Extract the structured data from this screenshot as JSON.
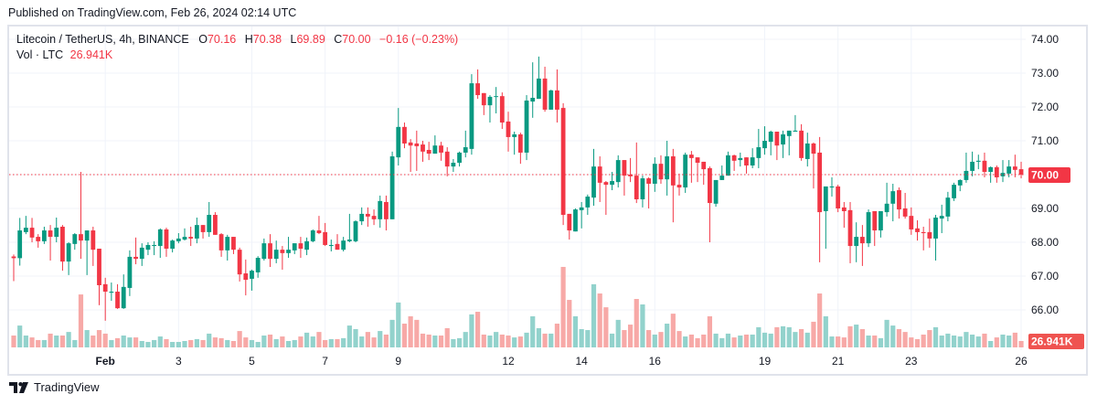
{
  "published": "Published on TradingView.com, Feb 26, 2024 02:14 UTC",
  "legend": {
    "symbol": "Litecoin / TetherUS, 4h, BINANCE",
    "open_label": "O",
    "open": "70.16",
    "high_label": "H",
    "high": "70.38",
    "low_label": "L",
    "low": "69.89",
    "close_label": "C",
    "close": "70.00",
    "change": "−0.16 (−0.23%)",
    "vol_label": "Vol · LTC",
    "vol_value": "26.941K"
  },
  "brand": "TradingView",
  "colors": {
    "up": "#089981",
    "down": "#f23645",
    "vol_up": "#92d2cc",
    "vol_down": "#f7a9a7",
    "grid": "#f0f3fa",
    "last_price": "#f23645"
  },
  "chart_data": {
    "type": "candlestick",
    "interval": "4h",
    "y_axis": {
      "ticks": [
        "74.00",
        "73.00",
        "72.00",
        "71.00",
        "70.00",
        "69.00",
        "68.00",
        "67.00",
        "66.00"
      ],
      "range": [
        65.0,
        74.0
      ]
    },
    "x_axis": {
      "ticks": [
        {
          "label": "Feb",
          "index": 15
        },
        {
          "label": "3",
          "index": 27
        },
        {
          "label": "5",
          "index": 39
        },
        {
          "label": "7",
          "index": 51
        },
        {
          "label": "9",
          "index": 63
        },
        {
          "label": "12",
          "index": 81
        },
        {
          "label": "14",
          "index": 93
        },
        {
          "label": "16",
          "index": 105
        },
        {
          "label": "19",
          "index": 123
        },
        {
          "label": "21",
          "index": 135
        },
        {
          "label": "23",
          "index": 147
        },
        {
          "label": "26",
          "index": 165
        }
      ]
    },
    "last_price_label": "70.00",
    "last_volume_label": "26.941K",
    "volume_unit": "K",
    "ohlcv_fields": [
      "open",
      "high",
      "low",
      "close",
      "volume_k"
    ],
    "ohlcv": [
      [
        67.58,
        67.64,
        66.85,
        67.53,
        50
      ],
      [
        67.53,
        68.72,
        67.31,
        68.35,
        92
      ],
      [
        68.3,
        68.78,
        68.24,
        68.43,
        50
      ],
      [
        68.43,
        68.72,
        68.0,
        68.14,
        42
      ],
      [
        68.16,
        68.24,
        67.84,
        68.03,
        31
      ],
      [
        68.03,
        68.46,
        67.95,
        68.35,
        31
      ],
      [
        68.35,
        68.51,
        67.46,
        68.16,
        58
      ],
      [
        68.16,
        68.73,
        68.0,
        68.43,
        50
      ],
      [
        68.46,
        68.51,
        67.16,
        67.43,
        50
      ],
      [
        67.43,
        68.0,
        67.03,
        67.97,
        65
      ],
      [
        67.95,
        68.27,
        67.78,
        68.24,
        31
      ],
      [
        68.24,
        70.08,
        67.51,
        68.05,
        223
      ],
      [
        68.05,
        68.35,
        67.03,
        68.35,
        73
      ],
      [
        68.35,
        68.46,
        67.3,
        67.78,
        50
      ],
      [
        67.81,
        67.81,
        66.14,
        66.73,
        73
      ],
      [
        66.76,
        66.95,
        65.68,
        66.54,
        58
      ],
      [
        66.51,
        66.81,
        66.27,
        66.54,
        31
      ],
      [
        66.54,
        66.76,
        66.03,
        66.05,
        39
      ],
      [
        66.05,
        67.05,
        66.03,
        66.68,
        50
      ],
      [
        66.65,
        67.76,
        66.41,
        67.57,
        42
      ],
      [
        67.57,
        68.14,
        67.35,
        67.51,
        42
      ],
      [
        67.51,
        67.97,
        67.3,
        67.84,
        27
      ],
      [
        67.78,
        68.0,
        67.62,
        67.92,
        23
      ],
      [
        67.89,
        68.03,
        67.62,
        67.92,
        31
      ],
      [
        67.89,
        68.41,
        67.54,
        68.38,
        46
      ],
      [
        68.38,
        68.43,
        67.57,
        67.81,
        35
      ],
      [
        67.81,
        68.08,
        67.7,
        68.05,
        23
      ],
      [
        68.03,
        68.27,
        67.97,
        68.11,
        23
      ],
      [
        68.08,
        68.41,
        68.05,
        68.16,
        27
      ],
      [
        68.16,
        68.46,
        67.89,
        68.11,
        31
      ],
      [
        68.11,
        68.73,
        67.97,
        68.51,
        35
      ],
      [
        68.51,
        68.51,
        68.11,
        68.3,
        31
      ],
      [
        68.3,
        69.19,
        68.16,
        68.81,
        58
      ],
      [
        68.81,
        68.89,
        68.22,
        68.22,
        42
      ],
      [
        68.24,
        68.27,
        67.57,
        67.76,
        39
      ],
      [
        67.76,
        68.22,
        67.46,
        68.16,
        31
      ],
      [
        68.16,
        68.16,
        67.65,
        67.78,
        27
      ],
      [
        67.78,
        67.84,
        66.84,
        67.05,
        69
      ],
      [
        67.08,
        67.49,
        66.43,
        66.89,
        42
      ],
      [
        66.92,
        67.19,
        66.57,
        67.16,
        31
      ],
      [
        67.11,
        67.59,
        66.95,
        67.54,
        23
      ],
      [
        67.51,
        68.11,
        67.46,
        67.97,
        50
      ],
      [
        67.97,
        68.24,
        67.27,
        67.51,
        54
      ],
      [
        67.51,
        68.05,
        67.38,
        67.78,
        35
      ],
      [
        67.78,
        67.89,
        67.19,
        67.68,
        46
      ],
      [
        67.68,
        68.16,
        67.54,
        67.78,
        27
      ],
      [
        67.76,
        67.97,
        67.65,
        67.97,
        31
      ],
      [
        67.97,
        68.16,
        67.54,
        67.81,
        46
      ],
      [
        67.78,
        68.14,
        67.62,
        68.03,
        62
      ],
      [
        68.03,
        68.38,
        68.0,
        68.35,
        46
      ],
      [
        68.35,
        68.78,
        68.24,
        68.27,
        65
      ],
      [
        68.3,
        68.57,
        67.89,
        67.92,
        31
      ],
      [
        67.89,
        68.08,
        67.73,
        67.92,
        35
      ],
      [
        67.95,
        68.24,
        67.78,
        67.78,
        35
      ],
      [
        67.78,
        68.16,
        67.73,
        68.05,
        39
      ],
      [
        68.03,
        68.84,
        68.0,
        68.08,
        92
      ],
      [
        68.03,
        68.65,
        68.0,
        68.62,
        77
      ],
      [
        68.62,
        69.03,
        68.51,
        68.84,
        46
      ],
      [
        68.84,
        69.03,
        68.46,
        68.76,
        65
      ],
      [
        68.78,
        68.97,
        68.51,
        68.68,
        42
      ],
      [
        68.68,
        69.38,
        68.43,
        69.22,
        69
      ],
      [
        69.19,
        69.38,
        68.35,
        68.68,
        54
      ],
      [
        68.68,
        70.68,
        68.68,
        70.54,
        116
      ],
      [
        70.51,
        71.97,
        70.27,
        71.41,
        189
      ],
      [
        71.41,
        71.54,
        70.78,
        70.92,
        100
      ],
      [
        70.95,
        71.05,
        70.08,
        70.86,
        131
      ],
      [
        70.92,
        71.3,
        70.11,
        70.84,
        116
      ],
      [
        70.89,
        71.0,
        70.38,
        70.68,
        58
      ],
      [
        70.73,
        70.97,
        70.43,
        70.62,
        54
      ],
      [
        70.62,
        71.16,
        70.62,
        70.86,
        50
      ],
      [
        70.86,
        70.97,
        70.41,
        70.65,
        50
      ],
      [
        70.68,
        70.81,
        69.95,
        70.24,
        81
      ],
      [
        70.24,
        70.46,
        70.08,
        70.35,
        35
      ],
      [
        70.35,
        70.68,
        70.24,
        70.65,
        39
      ],
      [
        70.65,
        71.3,
        70.51,
        70.81,
        65
      ],
      [
        70.76,
        72.97,
        70.59,
        72.7,
        139
      ],
      [
        72.7,
        73.11,
        72.24,
        72.35,
        150
      ],
      [
        72.41,
        72.41,
        71.76,
        72.05,
        54
      ],
      [
        72.05,
        72.35,
        71.54,
        72.3,
        50
      ],
      [
        72.3,
        72.59,
        71.81,
        72.32,
        65
      ],
      [
        72.32,
        72.43,
        71.35,
        71.54,
        54
      ],
      [
        71.57,
        71.86,
        70.68,
        71.11,
        50
      ],
      [
        71.11,
        71.27,
        70.59,
        71.19,
        42
      ],
      [
        71.19,
        71.24,
        70.32,
        70.65,
        46
      ],
      [
        70.65,
        72.35,
        70.43,
        72.19,
        62
      ],
      [
        72.16,
        73.32,
        71.68,
        72.27,
        131
      ],
      [
        72.24,
        73.49,
        72.24,
        72.84,
        81
      ],
      [
        72.84,
        73.19,
        71.86,
        71.92,
        58
      ],
      [
        71.92,
        72.51,
        71.92,
        72.49,
        58
      ],
      [
        72.49,
        73.11,
        71.54,
        71.92,
        100
      ],
      [
        71.97,
        72.11,
        68.51,
        68.81,
        339
      ],
      [
        68.84,
        68.84,
        68.08,
        68.35,
        200
      ],
      [
        68.32,
        69.0,
        68.32,
        68.97,
        131
      ],
      [
        68.95,
        69.19,
        68.41,
        69.03,
        77
      ],
      [
        69.03,
        69.41,
        68.81,
        69.35,
        73
      ],
      [
        69.32,
        70.76,
        69.08,
        70.24,
        266
      ],
      [
        70.24,
        70.54,
        69.19,
        69.76,
        227
      ],
      [
        69.78,
        69.81,
        68.81,
        69.7,
        169
      ],
      [
        69.7,
        70.08,
        69.54,
        69.81,
        58
      ],
      [
        69.78,
        70.57,
        69.62,
        70.43,
        116
      ],
      [
        70.43,
        70.43,
        69.38,
        69.97,
        73
      ],
      [
        70.0,
        70.49,
        69.78,
        69.95,
        96
      ],
      [
        69.97,
        70.95,
        69.16,
        69.27,
        204
      ],
      [
        69.27,
        69.97,
        69.03,
        69.89,
        181
      ],
      [
        69.89,
        69.92,
        69.0,
        69.73,
        73
      ],
      [
        69.73,
        70.51,
        69.49,
        70.32,
        54
      ],
      [
        70.32,
        70.57,
        69.73,
        69.86,
        65
      ],
      [
        69.86,
        71.0,
        69.38,
        70.54,
        100
      ],
      [
        70.54,
        70.76,
        68.59,
        69.68,
        142
      ],
      [
        69.7,
        70.03,
        69.38,
        69.62,
        69
      ],
      [
        69.62,
        70.65,
        69.46,
        70.59,
        46
      ],
      [
        70.59,
        70.7,
        69.76,
        70.49,
        54
      ],
      [
        70.51,
        70.51,
        69.78,
        70.35,
        39
      ],
      [
        70.38,
        70.38,
        69.7,
        70.16,
        54
      ],
      [
        70.19,
        70.24,
        68.0,
        69.16,
        131
      ],
      [
        69.14,
        69.84,
        69.05,
        69.84,
        58
      ],
      [
        69.84,
        70.27,
        69.84,
        69.97,
        39
      ],
      [
        69.97,
        70.68,
        69.97,
        70.57,
        58
      ],
      [
        70.57,
        70.59,
        70.11,
        70.41,
        42
      ],
      [
        70.43,
        70.65,
        70.24,
        70.49,
        50
      ],
      [
        70.51,
        70.51,
        70.03,
        70.27,
        54
      ],
      [
        70.27,
        70.78,
        70.19,
        70.51,
        54
      ],
      [
        70.49,
        71.35,
        70.19,
        70.81,
        85
      ],
      [
        70.78,
        71.43,
        70.59,
        71.0,
        62
      ],
      [
        70.97,
        71.3,
        70.57,
        71.27,
        58
      ],
      [
        71.27,
        71.27,
        70.43,
        70.86,
        85
      ],
      [
        70.89,
        71.3,
        70.49,
        71.19,
        89
      ],
      [
        71.14,
        71.3,
        70.57,
        71.3,
        85
      ],
      [
        71.27,
        71.76,
        71.27,
        71.3,
        65
      ],
      [
        71.3,
        71.49,
        70.41,
        70.49,
        77
      ],
      [
        70.46,
        71.24,
        70.24,
        70.92,
        62
      ],
      [
        70.92,
        70.95,
        69.59,
        70.62,
        108
      ],
      [
        70.65,
        71.11,
        67.41,
        68.89,
        227
      ],
      [
        68.92,
        69.65,
        67.81,
        69.65,
        131
      ],
      [
        69.62,
        69.92,
        69.35,
        69.65,
        46
      ],
      [
        69.65,
        69.7,
        68.89,
        69.0,
        46
      ],
      [
        69.03,
        69.19,
        68.43,
        68.92,
        42
      ],
      [
        68.95,
        69.19,
        67.38,
        67.89,
        89
      ],
      [
        67.89,
        68.59,
        67.41,
        68.16,
        96
      ],
      [
        68.16,
        68.51,
        67.3,
        67.97,
        77
      ],
      [
        67.97,
        68.97,
        67.86,
        68.89,
        50
      ],
      [
        68.92,
        68.92,
        67.89,
        68.35,
        50
      ],
      [
        68.35,
        68.92,
        68.14,
        68.92,
        39
      ],
      [
        68.89,
        69.76,
        68.76,
        69.14,
        116
      ],
      [
        69.14,
        69.73,
        68.62,
        69.51,
        92
      ],
      [
        69.54,
        69.62,
        68.7,
        68.97,
        77
      ],
      [
        69.0,
        69.46,
        68.7,
        68.76,
        65
      ],
      [
        68.78,
        69.03,
        68.22,
        68.38,
        42
      ],
      [
        68.41,
        68.65,
        68.05,
        68.3,
        35
      ],
      [
        68.3,
        68.46,
        67.76,
        68.27,
        54
      ],
      [
        68.3,
        68.7,
        67.84,
        68.11,
        73
      ],
      [
        68.11,
        68.81,
        67.46,
        68.73,
        85
      ],
      [
        68.7,
        69.11,
        68.27,
        68.78,
        50
      ],
      [
        68.76,
        69.49,
        68.62,
        69.32,
        58
      ],
      [
        69.3,
        69.76,
        69.22,
        69.7,
        50
      ],
      [
        69.68,
        69.86,
        69.51,
        69.84,
        46
      ],
      [
        69.84,
        70.65,
        69.76,
        70.11,
        65
      ],
      [
        70.11,
        70.68,
        69.95,
        70.38,
        54
      ],
      [
        70.38,
        70.59,
        70.16,
        70.41,
        46
      ],
      [
        70.41,
        70.65,
        69.92,
        70.08,
        58
      ],
      [
        70.08,
        70.24,
        69.76,
        70.22,
        27
      ],
      [
        70.22,
        70.27,
        69.76,
        69.92,
        42
      ],
      [
        69.95,
        70.43,
        69.78,
        70.05,
        54
      ],
      [
        70.03,
        70.43,
        69.92,
        70.24,
        50
      ],
      [
        70.24,
        70.59,
        69.92,
        70.14,
        62
      ],
      [
        70.16,
        70.38,
        69.89,
        70.0,
        26.941
      ]
    ]
  }
}
